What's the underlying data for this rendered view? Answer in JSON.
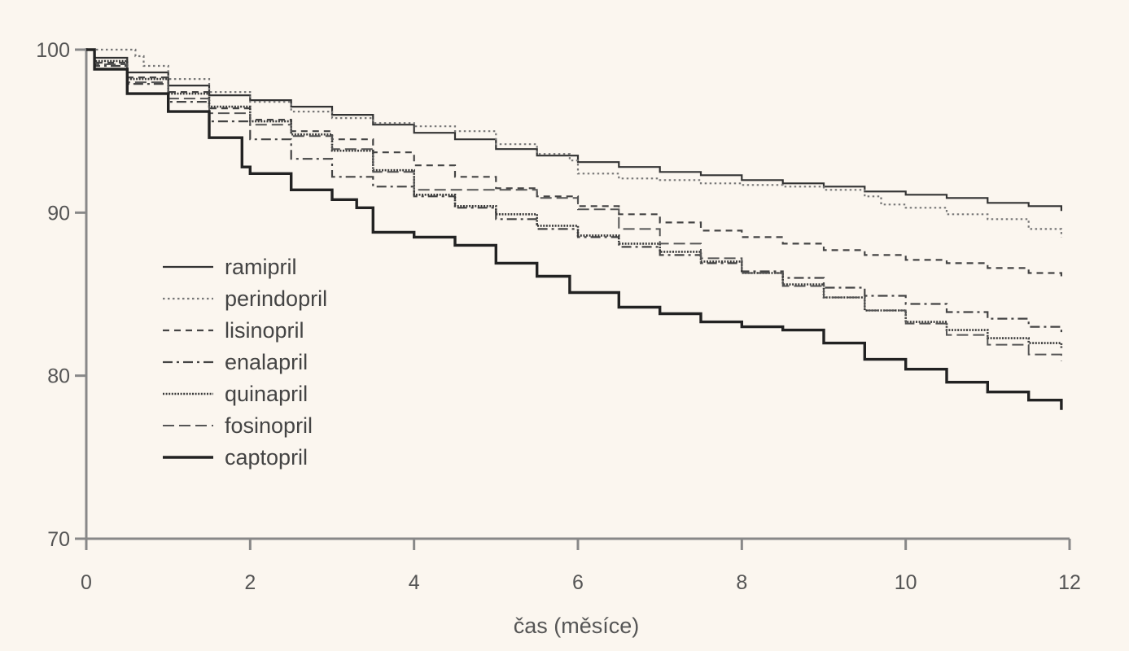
{
  "chart_data": {
    "type": "line",
    "title": "",
    "xlabel": "čas (měsíce)",
    "ylabel": "",
    "xlim": [
      0,
      12
    ],
    "ylim": [
      70,
      100
    ],
    "x_ticks": [
      "0",
      "2",
      "4",
      "6",
      "8",
      "10",
      "12"
    ],
    "y_ticks": [
      "70",
      "80",
      "90",
      "100"
    ],
    "grid": false,
    "legend_position": "center-left",
    "series": [
      {
        "name": "ramipril",
        "style": "solid",
        "color": "#333333",
        "points": [
          [
            0,
            100
          ],
          [
            0.1,
            99.5
          ],
          [
            0.5,
            98.6
          ],
          [
            1,
            97.8
          ],
          [
            1.5,
            97.2
          ],
          [
            2,
            96.9
          ],
          [
            2.5,
            96.5
          ],
          [
            3,
            96.0
          ],
          [
            3.5,
            95.4
          ],
          [
            4,
            94.9
          ],
          [
            4.5,
            94.5
          ],
          [
            5,
            93.9
          ],
          [
            5.5,
            93.5
          ],
          [
            6,
            93.1
          ],
          [
            6.5,
            92.8
          ],
          [
            7,
            92.5
          ],
          [
            7.5,
            92.3
          ],
          [
            8,
            92.0
          ],
          [
            8.5,
            91.8
          ],
          [
            9,
            91.6
          ],
          [
            9.5,
            91.3
          ],
          [
            10,
            91.1
          ],
          [
            10.5,
            90.9
          ],
          [
            11,
            90.6
          ],
          [
            11.5,
            90.4
          ],
          [
            11.9,
            90.1
          ]
        ]
      },
      {
        "name": "perindopril",
        "style": "dotted",
        "color": "#777777",
        "points": [
          [
            0,
            100
          ],
          [
            0.2,
            100
          ],
          [
            0.6,
            99.6
          ],
          [
            0.7,
            99.0
          ],
          [
            1,
            98.2
          ],
          [
            1.5,
            97.4
          ],
          [
            2,
            96.8
          ],
          [
            2.5,
            96.2
          ],
          [
            3,
            95.8
          ],
          [
            3.5,
            95.5
          ],
          [
            4,
            95.3
          ],
          [
            4.5,
            95.0
          ],
          [
            5,
            94.2
          ],
          [
            5.5,
            93.6
          ],
          [
            5.9,
            93.2
          ],
          [
            6,
            92.4
          ],
          [
            6.5,
            92.1
          ],
          [
            7,
            92.0
          ],
          [
            7.5,
            91.8
          ],
          [
            8,
            91.7
          ],
          [
            8.5,
            91.6
          ],
          [
            9,
            91.4
          ],
          [
            9.5,
            91.0
          ],
          [
            9.7,
            90.5
          ],
          [
            10,
            90.3
          ],
          [
            10.5,
            89.9
          ],
          [
            11,
            89.6
          ],
          [
            11.5,
            89.0
          ],
          [
            11.9,
            88.5
          ]
        ]
      },
      {
        "name": "lisinopril",
        "style": "dashed",
        "color": "#444444",
        "points": [
          [
            0,
            100
          ],
          [
            0.1,
            99.2
          ],
          [
            0.5,
            98.3
          ],
          [
            1,
            97.4
          ],
          [
            1.5,
            96.4
          ],
          [
            2,
            95.7
          ],
          [
            2.5,
            95.0
          ],
          [
            3,
            94.5
          ],
          [
            3.5,
            93.7
          ],
          [
            4,
            92.9
          ],
          [
            4.5,
            92.2
          ],
          [
            5,
            91.5
          ],
          [
            5.5,
            91.0
          ],
          [
            6,
            90.4
          ],
          [
            6.5,
            89.9
          ],
          [
            7,
            89.4
          ],
          [
            7.5,
            88.9
          ],
          [
            8,
            88.5
          ],
          [
            8.5,
            88.1
          ],
          [
            9,
            87.7
          ],
          [
            9.5,
            87.4
          ],
          [
            10,
            87.1
          ],
          [
            10.5,
            86.9
          ],
          [
            11,
            86.6
          ],
          [
            11.5,
            86.3
          ],
          [
            11.9,
            86.1
          ]
        ]
      },
      {
        "name": "enalapril",
        "style": "dashdot",
        "color": "#444444",
        "points": [
          [
            0,
            100
          ],
          [
            0.1,
            99.0
          ],
          [
            0.5,
            97.9
          ],
          [
            1,
            96.8
          ],
          [
            1.5,
            95.6
          ],
          [
            2,
            94.5
          ],
          [
            2.5,
            93.3
          ],
          [
            3,
            92.2
          ],
          [
            3.5,
            91.6
          ],
          [
            4,
            91.0
          ],
          [
            4.5,
            90.3
          ],
          [
            5,
            89.6
          ],
          [
            5.5,
            89.0
          ],
          [
            6,
            88.5
          ],
          [
            6.5,
            87.9
          ],
          [
            7,
            87.4
          ],
          [
            7.5,
            86.9
          ],
          [
            8,
            86.4
          ],
          [
            8.5,
            86.0
          ],
          [
            9,
            85.4
          ],
          [
            9.5,
            84.9
          ],
          [
            10,
            84.4
          ],
          [
            10.5,
            83.9
          ],
          [
            11,
            83.5
          ],
          [
            11.5,
            83.0
          ],
          [
            11.9,
            82.6
          ]
        ]
      },
      {
        "name": "quinapril",
        "style": "densedot",
        "color": "#3a3a3a",
        "points": [
          [
            0,
            100
          ],
          [
            0.1,
            99.3
          ],
          [
            0.5,
            98.2
          ],
          [
            1,
            97.3
          ],
          [
            1.5,
            96.5
          ],
          [
            2,
            95.6
          ],
          [
            2.5,
            94.8
          ],
          [
            3,
            93.8
          ],
          [
            3.5,
            92.6
          ],
          [
            4,
            91.1
          ],
          [
            4.5,
            90.4
          ],
          [
            5,
            89.9
          ],
          [
            5.5,
            89.2
          ],
          [
            6,
            88.6
          ],
          [
            6.5,
            88.1
          ],
          [
            7,
            87.6
          ],
          [
            7.5,
            87.0
          ],
          [
            8,
            86.3
          ],
          [
            8.5,
            85.6
          ],
          [
            9,
            84.8
          ],
          [
            9.5,
            84.0
          ],
          [
            10,
            83.3
          ],
          [
            10.5,
            82.8
          ],
          [
            11,
            82.3
          ],
          [
            11.5,
            82.0
          ],
          [
            11.9,
            81.7
          ]
        ]
      },
      {
        "name": "fosinopril",
        "style": "longdash",
        "color": "#555555",
        "points": [
          [
            0,
            100
          ],
          [
            0.1,
            99.1
          ],
          [
            0.5,
            98.0
          ],
          [
            1,
            97.0
          ],
          [
            1.5,
            96.1
          ],
          [
            2,
            95.4
          ],
          [
            2.5,
            94.7
          ],
          [
            3,
            93.9
          ],
          [
            3.5,
            92.5
          ],
          [
            4,
            91.4
          ],
          [
            4.5,
            91.4
          ],
          [
            5,
            91.4
          ],
          [
            5.5,
            90.9
          ],
          [
            6,
            90.2
          ],
          [
            6.5,
            89.0
          ],
          [
            7,
            88.1
          ],
          [
            7.5,
            87.2
          ],
          [
            8,
            86.3
          ],
          [
            8.5,
            85.5
          ],
          [
            9,
            84.8
          ],
          [
            9.5,
            84.0
          ],
          [
            10,
            83.2
          ],
          [
            10.5,
            82.5
          ],
          [
            11,
            81.9
          ],
          [
            11.5,
            81.3
          ],
          [
            11.9,
            80.9
          ]
        ]
      },
      {
        "name": "captopril",
        "style": "solid-thick",
        "color": "#222222",
        "points": [
          [
            0,
            100
          ],
          [
            0.1,
            98.8
          ],
          [
            0.5,
            97.3
          ],
          [
            1,
            96.2
          ],
          [
            1.5,
            94.6
          ],
          [
            1.9,
            92.8
          ],
          [
            2,
            92.4
          ],
          [
            2.5,
            91.4
          ],
          [
            3,
            90.8
          ],
          [
            3.3,
            90.3
          ],
          [
            3.5,
            88.8
          ],
          [
            4,
            88.5
          ],
          [
            4.5,
            88.0
          ],
          [
            5,
            86.9
          ],
          [
            5.5,
            86.1
          ],
          [
            5.9,
            85.1
          ],
          [
            6.5,
            84.2
          ],
          [
            7,
            83.8
          ],
          [
            7.5,
            83.3
          ],
          [
            8,
            83.0
          ],
          [
            8.5,
            82.8
          ],
          [
            9,
            82.0
          ],
          [
            9.5,
            81.0
          ],
          [
            10,
            80.4
          ],
          [
            10.5,
            79.6
          ],
          [
            11,
            79.0
          ],
          [
            11.5,
            78.5
          ],
          [
            11.9,
            77.9
          ]
        ]
      }
    ]
  }
}
